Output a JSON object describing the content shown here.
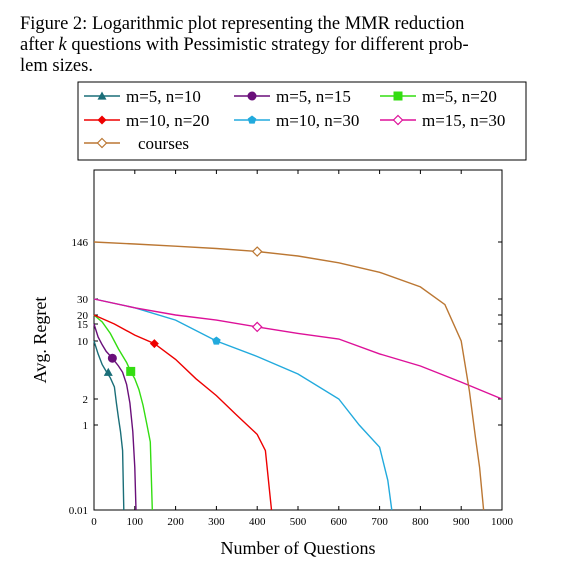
{
  "caption": {
    "prefix": "Figure 2: Logarithmic plot representing the MMR reduction after ",
    "var": "k",
    "suffix": " questions with Pessimistic strategy for different problem sizes.",
    "line1": "Figure 2: Logarithmic plot representing the MMR reduction",
    "line2_pre": "after ",
    "line2_post": " questions with Pessimistic strategy for different prob-",
    "line3": "lem sizes."
  },
  "chart_data": {
    "type": "line",
    "xlabel": "Number of Questions",
    "ylabel": "Avg. Regret",
    "xlim": [
      0,
      1000
    ],
    "ylim": [
      0.01,
      1000
    ],
    "yscale": "log-like (custom ticks)",
    "xticks": [
      0,
      100,
      200,
      300,
      400,
      500,
      600,
      700,
      800,
      900,
      1000
    ],
    "yticks": [
      {
        "label": "0.01",
        "value": 0.01
      },
      {
        "label": "1",
        "value": 1
      },
      {
        "label": "2",
        "value": 2
      },
      {
        "label": "10",
        "value": 10
      },
      {
        "label": "15",
        "value": 15
      },
      {
        "label": "20",
        "value": 20
      },
      {
        "label": "30",
        "value": 30
      },
      {
        "label": "146",
        "value": 146
      }
    ],
    "grid": false,
    "legend_position": "top",
    "series": [
      {
        "name": "m=5, n=10",
        "color": "#1a6e78",
        "marker": "triangle",
        "marker_at": [
          35,
          4.2
        ],
        "points": [
          [
            0,
            10
          ],
          [
            10,
            7
          ],
          [
            20,
            5.2
          ],
          [
            30,
            4.3
          ],
          [
            40,
            3.6
          ],
          [
            50,
            2.8
          ],
          [
            55,
            1.8
          ],
          [
            60,
            1.2
          ],
          [
            65,
            0.7
          ],
          [
            70,
            0.25
          ],
          [
            73,
            0.01
          ]
        ]
      },
      {
        "name": "m=5, n=15",
        "color": "#6a0f7a",
        "marker": "circle",
        "marker_at": [
          45,
          6.2
        ],
        "points": [
          [
            0,
            15
          ],
          [
            10,
            11
          ],
          [
            20,
            9
          ],
          [
            30,
            7.5
          ],
          [
            45,
            6.2
          ],
          [
            60,
            5
          ],
          [
            70,
            4.2
          ],
          [
            80,
            3
          ],
          [
            88,
            1.8
          ],
          [
            95,
            0.7
          ],
          [
            100,
            0.1
          ],
          [
            103,
            0.01
          ]
        ]
      },
      {
        "name": "m=5, n=20",
        "color": "#33dd11",
        "marker": "square",
        "marker_at": [
          90,
          4.3
        ],
        "points": [
          [
            0,
            20
          ],
          [
            20,
            16
          ],
          [
            40,
            12
          ],
          [
            60,
            8
          ],
          [
            80,
            5.5
          ],
          [
            90,
            4.3
          ],
          [
            100,
            3.5
          ],
          [
            110,
            2.6
          ],
          [
            120,
            1.7
          ],
          [
            130,
            1
          ],
          [
            138,
            0.4
          ],
          [
            143,
            0.01
          ]
        ]
      },
      {
        "name": "m=10, n=20",
        "color": "#ee0000",
        "marker": "diamond",
        "marker_at": [
          148,
          9.3
        ],
        "points": [
          [
            0,
            20
          ],
          [
            50,
            15
          ],
          [
            100,
            11.5
          ],
          [
            148,
            9.3
          ],
          [
            200,
            6
          ],
          [
            250,
            3.5
          ],
          [
            300,
            2.2
          ],
          [
            350,
            1.3
          ],
          [
            400,
            0.6
          ],
          [
            420,
            0.25
          ],
          [
            435,
            0.01
          ]
        ]
      },
      {
        "name": "m=10, n=30",
        "color": "#22aadd",
        "marker": "pentagon",
        "marker_at": [
          300,
          10
        ],
        "points": [
          [
            0,
            30
          ],
          [
            100,
            24
          ],
          [
            200,
            17
          ],
          [
            300,
            10
          ],
          [
            400,
            6.5
          ],
          [
            500,
            4
          ],
          [
            600,
            2
          ],
          [
            650,
            1
          ],
          [
            700,
            0.3
          ],
          [
            720,
            0.05
          ],
          [
            730,
            0.01
          ]
        ]
      },
      {
        "name": "m=15, n=30",
        "color": "#dd1199",
        "marker": "diamond-open",
        "marker_at": [
          400,
          14
        ],
        "points": [
          [
            0,
            30
          ],
          [
            100,
            24
          ],
          [
            200,
            20
          ],
          [
            300,
            17
          ],
          [
            400,
            14
          ],
          [
            500,
            12
          ],
          [
            600,
            10.5
          ],
          [
            700,
            7
          ],
          [
            800,
            5
          ],
          [
            900,
            3.2
          ],
          [
            1000,
            2
          ]
        ]
      },
      {
        "name": "courses",
        "color": "#bb7733",
        "marker": "diamond-open",
        "marker_at": [
          400,
          112
        ],
        "points": [
          [
            0,
            146
          ],
          [
            100,
            138
          ],
          [
            200,
            130
          ],
          [
            300,
            122
          ],
          [
            400,
            112
          ],
          [
            500,
            99
          ],
          [
            600,
            82
          ],
          [
            700,
            63
          ],
          [
            800,
            42
          ],
          [
            860,
            26
          ],
          [
            900,
            10
          ],
          [
            920,
            2.5
          ],
          [
            935,
            0.5
          ],
          [
            945,
            0.1
          ],
          [
            955,
            0.01
          ]
        ]
      }
    ]
  }
}
